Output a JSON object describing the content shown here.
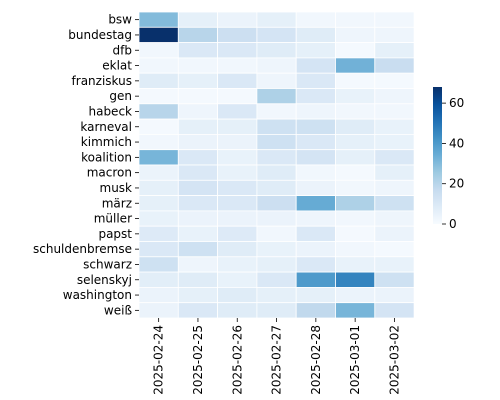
{
  "chart_data": {
    "type": "heatmap",
    "title": "",
    "xlabel": "",
    "ylabel": "",
    "rows": [
      "bsw",
      "bundestag",
      "dfb",
      "eklat",
      "franziskus",
      "gen",
      "habeck",
      "karneval",
      "kimmich",
      "koalition",
      "macron",
      "musk",
      "märz",
      "müller",
      "papst",
      "schuldenbremse",
      "schwarz",
      "selenskyj",
      "washington",
      "weiß"
    ],
    "columns": [
      "2025-02-24",
      "2025-02-25",
      "2025-02-26",
      "2025-02-27",
      "2025-02-28",
      "2025-03-01",
      "2025-03-02"
    ],
    "values": [
      [
        30,
        6,
        4,
        6,
        2,
        2,
        2
      ],
      [
        68,
        20,
        15,
        12,
        8,
        3,
        3
      ],
      [
        2,
        10,
        10,
        8,
        6,
        1,
        6
      ],
      [
        2,
        2,
        2,
        3,
        12,
        33,
        16
      ],
      [
        8,
        6,
        10,
        3,
        10,
        1,
        1
      ],
      [
        1,
        1,
        1,
        22,
        10,
        5,
        3
      ],
      [
        20,
        3,
        10,
        2,
        3,
        2,
        2
      ],
      [
        1,
        6,
        6,
        14,
        14,
        8,
        5
      ],
      [
        2,
        4,
        4,
        14,
        10,
        6,
        5
      ],
      [
        32,
        10,
        5,
        10,
        12,
        6,
        10
      ],
      [
        4,
        10,
        5,
        8,
        2,
        1,
        6
      ],
      [
        6,
        12,
        10,
        8,
        4,
        2,
        3
      ],
      [
        6,
        10,
        10,
        15,
        35,
        22,
        14
      ],
      [
        5,
        4,
        4,
        4,
        3,
        2,
        3
      ],
      [
        9,
        5,
        9,
        2,
        10,
        1,
        4
      ],
      [
        10,
        14,
        8,
        5,
        4,
        2,
        1
      ],
      [
        14,
        3,
        5,
        6,
        10,
        5,
        5
      ],
      [
        7,
        8,
        5,
        10,
        40,
        46,
        14
      ],
      [
        4,
        6,
        8,
        6,
        6,
        4,
        4
      ],
      [
        4,
        10,
        8,
        8,
        18,
        32,
        12
      ]
    ],
    "colorbar": {
      "min": 0,
      "max": 68,
      "ticks": [
        0,
        20,
        40,
        60
      ],
      "colormap": "Blues"
    },
    "grid": false,
    "legend": "colorbar-right"
  }
}
